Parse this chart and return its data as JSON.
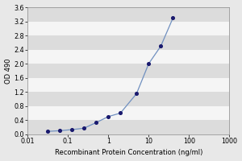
{
  "x": [
    0.0313,
    0.063,
    0.125,
    0.25,
    0.5,
    1.0,
    2.0,
    5.0,
    10.0,
    20.0,
    40.0
  ],
  "y": [
    0.08,
    0.1,
    0.13,
    0.17,
    0.33,
    0.5,
    0.6,
    1.15,
    2.0,
    2.5,
    3.3
  ],
  "xlabel": "Recombinant Protein Concentration (ng/ml)",
  "ylabel": "OD 490",
  "xlim": [
    0.01,
    1000
  ],
  "ylim": [
    0.0,
    3.6
  ],
  "yticks": [
    0.0,
    0.4,
    0.8,
    1.2,
    1.6,
    2.0,
    2.4,
    2.8,
    3.2,
    3.6
  ],
  "ytick_labels": [
    "0.0",
    "0.4",
    "0.8",
    "1.2",
    "1.6",
    "2.0",
    "2.4",
    "2.8",
    "3.2",
    "3.6"
  ],
  "xticks": [
    0.01,
    0.1,
    1,
    10,
    100,
    1000
  ],
  "xtick_labels": [
    "0.01",
    "0.1",
    "1",
    "10",
    "100",
    "1000"
  ],
  "line_color": "#7090c0",
  "marker_color": "#1a1a6e",
  "bg_color": "#e8e8e8",
  "plot_bg_color": "#f5f5f5",
  "band_color": "#dcdcdc",
  "label_fontsize": 6.0,
  "tick_fontsize": 5.8
}
